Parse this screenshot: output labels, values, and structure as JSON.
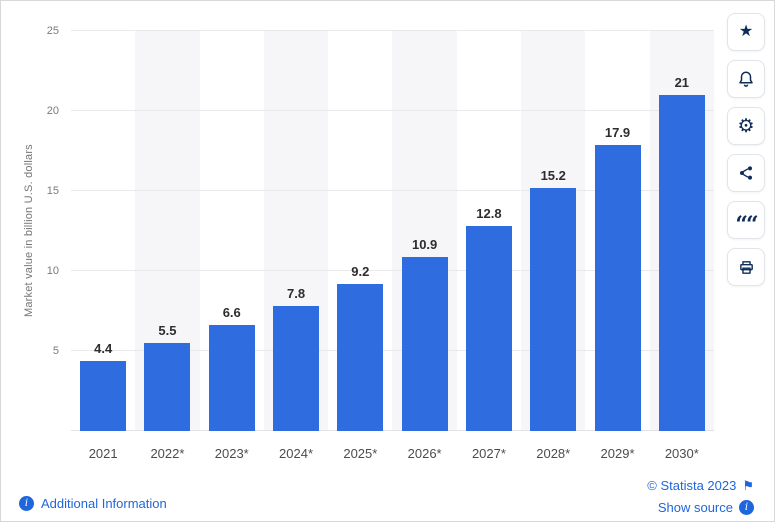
{
  "chart_data": {
    "type": "bar",
    "title": "",
    "categories": [
      "2021",
      "2022*",
      "2023*",
      "2024*",
      "2025*",
      "2026*",
      "2027*",
      "2028*",
      "2029*",
      "2030*"
    ],
    "values": [
      4.4,
      5.5,
      6.6,
      7.8,
      9.2,
      10.9,
      12.8,
      15.2,
      17.9,
      21
    ],
    "value_labels": [
      "4.4",
      "5.5",
      "6.6",
      "7.8",
      "9.2",
      "10.9",
      "12.8",
      "15.2",
      "17.9",
      "21"
    ],
    "xlabel": "",
    "ylabel": "Market value in billion U.S. dollars",
    "ylim": [
      0,
      25
    ],
    "yticks": [
      5,
      10,
      15,
      20,
      25
    ],
    "grid": true,
    "legend": null,
    "bar_color": "#2e6ce0",
    "stripe_color": "#f6f6f8"
  },
  "icons": {
    "star": "★",
    "gear": "⚙",
    "quote": "““",
    "flag": "⚑",
    "info": "i"
  },
  "toolbar": {
    "buttons": [
      "favorite",
      "notifications",
      "settings",
      "share",
      "cite",
      "print"
    ]
  },
  "footer": {
    "additional_information": "Additional Information",
    "copyright": "© Statista 2023",
    "show_source": "Show source"
  },
  "colors": {
    "link": "#1f66dd",
    "icon": "#0c2d57"
  }
}
